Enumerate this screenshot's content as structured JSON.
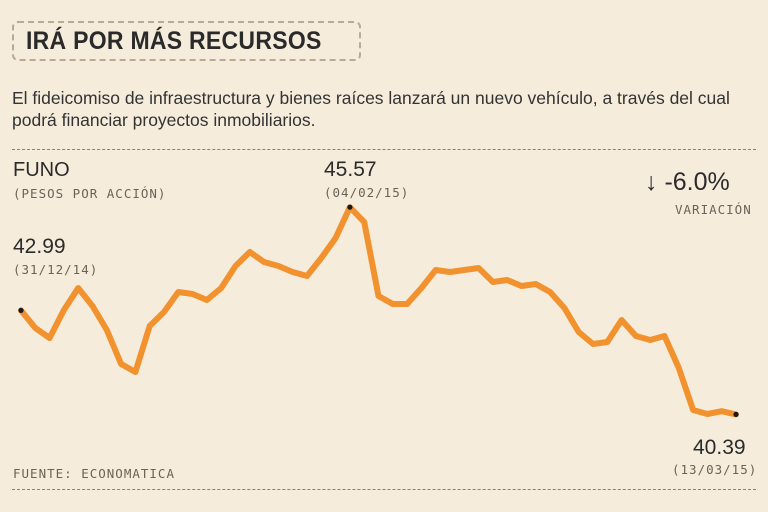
{
  "header": {
    "title": "IRÁ POR MÁS RECURSOS",
    "subtitle": "El fideicomiso de infraestructura y bienes raíces lanzará un nuevo vehículo, a través del cual podrá financiar proyectos inmobiliarios."
  },
  "chart_data": {
    "type": "line",
    "title": "FUNO",
    "ylabel": "(PESOS POR ACCIÓN)",
    "line_color": "#f2922e",
    "series": [
      {
        "name": "FUNO",
        "values": [
          42.99,
          42.55,
          42.3,
          43.0,
          43.55,
          43.1,
          42.5,
          41.65,
          41.45,
          42.6,
          42.95,
          43.45,
          43.4,
          43.25,
          43.55,
          44.1,
          44.45,
          44.2,
          44.1,
          43.95,
          43.85,
          44.3,
          44.8,
          45.57,
          45.2,
          43.35,
          43.15,
          43.15,
          43.55,
          44.0,
          43.95,
          44.0,
          44.05,
          43.7,
          43.75,
          43.6,
          43.65,
          43.45,
          43.05,
          42.45,
          42.15,
          42.2,
          42.75,
          42.35,
          42.25,
          42.35,
          41.55,
          40.5,
          40.4,
          40.47,
          40.39
        ]
      }
    ],
    "ylim": [
      39.0,
      47.0
    ],
    "annotations": {
      "start": {
        "value": "42.99",
        "date": "(31/12/14)"
      },
      "max": {
        "value": "45.57",
        "date": "(04/02/15)"
      },
      "end": {
        "value": "40.39",
        "date": "(13/03/15)"
      }
    },
    "change": {
      "arrow": "↓",
      "value": "-6.0%",
      "label": "VARIACIÓN"
    }
  },
  "footer": {
    "source": "FUENTE: ECONOMATICA"
  }
}
